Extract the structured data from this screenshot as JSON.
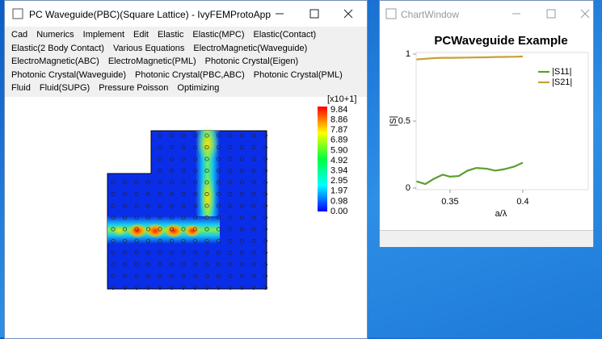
{
  "main_window": {
    "title": "PC Waveguide(PBC)(Square Lattice) - IvyFEMProtoApp",
    "menu_rows": [
      [
        "Cad",
        "Numerics",
        "Implement",
        "Edit",
        "Elastic",
        "Elastic(MPC)",
        "Elastic(Contact)"
      ],
      [
        "Elastic(2 Body Contact)",
        "Various Equations",
        "ElectroMagnetic(Waveguide)"
      ],
      [
        "ElectroMagnetic(ABC)",
        "ElectroMagnetic(PML)",
        "Photonic Crystal(Eigen)"
      ],
      [
        "Photonic Crystal(Waveguide)",
        "Photonic Crystal(PBC,ABC)",
        "Photonic Crystal(PML)"
      ],
      [
        "Fluid",
        "Fluid(SUPG)",
        "Pressure Poisson",
        "Optimizing"
      ]
    ],
    "colorbar": {
      "scale_label": "[x10+1]",
      "labels": [
        "9.84",
        "8.86",
        "7.87",
        "6.89",
        "5.90",
        "4.92",
        "3.94",
        "2.95",
        "1.97",
        "0.98",
        "0.00"
      ]
    }
  },
  "chart_window": {
    "title": "ChartWindow",
    "chart_data": {
      "type": "line",
      "title": "PCWaveguide Example",
      "x_label": "a/λ",
      "y_label": "|S|",
      "x": [
        0.327,
        0.333,
        0.339,
        0.345,
        0.35,
        0.356,
        0.362,
        0.368,
        0.375,
        0.381,
        0.387,
        0.394,
        0.4
      ],
      "series": [
        {
          "name": "|S11|",
          "color": "#5c9e2e",
          "values": [
            0.05,
            0.03,
            0.07,
            0.1,
            0.085,
            0.09,
            0.13,
            0.15,
            0.145,
            0.13,
            0.14,
            0.16,
            0.19
          ]
        },
        {
          "name": "|S21|",
          "color": "#c9a035",
          "values": [
            0.96,
            0.965,
            0.97,
            0.972,
            0.972,
            0.973,
            0.974,
            0.975,
            0.976,
            0.978,
            0.979,
            0.98,
            0.982
          ]
        }
      ],
      "xlim": [
        0.3267,
        0.445
      ],
      "ylim": [
        0,
        1
      ],
      "xticks": [
        0.35,
        0.4
      ],
      "yticks": [
        0,
        0.5,
        1
      ],
      "legend": "upper right"
    }
  }
}
